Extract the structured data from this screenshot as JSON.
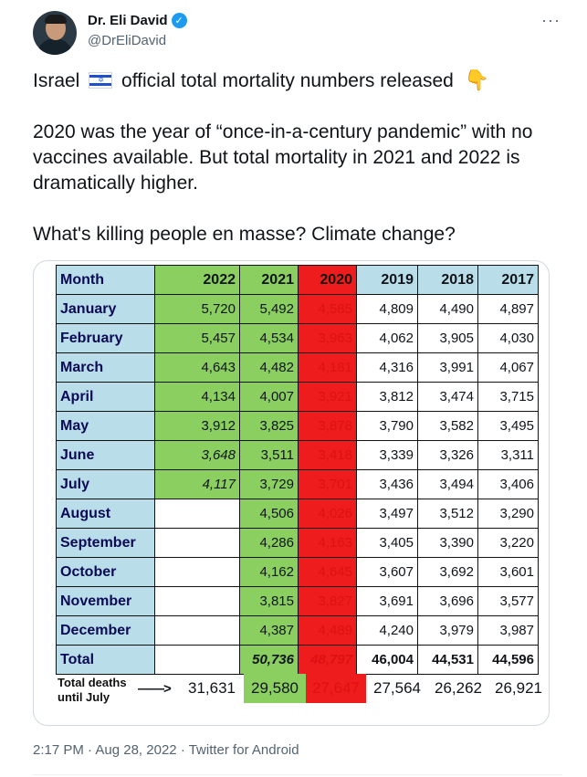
{
  "author": {
    "name": "Dr. Eli David",
    "handle": "@DrEliDavid",
    "verified_icon": "verified-badge-icon",
    "more_icon": "more-options-icon"
  },
  "tweet": {
    "line1_pre": "Israel",
    "line1_post": "official total mortality numbers released",
    "para2": "2020 was the year of “once-in-a-century pandemic” with no vaccines available. But total mortality in 2021 and 2022 is dramatically higher.",
    "para3": "What's killing people en masse? Climate change?"
  },
  "table": {
    "headers": [
      "Month",
      "2022",
      "2021",
      "2020",
      "2019",
      "2018",
      "2017"
    ],
    "rows": [
      [
        "January",
        "5,720",
        "5,492",
        "4,585",
        "4,809",
        "4,490",
        "4,897"
      ],
      [
        "February",
        "5,457",
        "4,534",
        "3,963",
        "4,062",
        "3,905",
        "4,030"
      ],
      [
        "March",
        "4,643",
        "4,482",
        "4,181",
        "4,316",
        "3,991",
        "4,067"
      ],
      [
        "April",
        "4,134",
        "4,007",
        "3,921",
        "3,812",
        "3,474",
        "3,715"
      ],
      [
        "May",
        "3,912",
        "3,825",
        "3,878",
        "3,790",
        "3,582",
        "3,495"
      ],
      [
        "June",
        "3,648",
        "3,511",
        "3,418",
        "3,339",
        "3,326",
        "3,311"
      ],
      [
        "July",
        "4,117",
        "3,729",
        "3,701",
        "3,436",
        "3,494",
        "3,406"
      ],
      [
        "August",
        "",
        "4,506",
        "4,026",
        "3,497",
        "3,512",
        "3,290"
      ],
      [
        "September",
        "",
        "4,286",
        "4,163",
        "3,405",
        "3,390",
        "3,220"
      ],
      [
        "October",
        "",
        "4,162",
        "4,645",
        "3,607",
        "3,692",
        "3,601"
      ],
      [
        "November",
        "",
        "3,815",
        "3,827",
        "3,691",
        "3,696",
        "3,577"
      ],
      [
        "December",
        "",
        "4,387",
        "4,489",
        "4,240",
        "3,979",
        "3,987"
      ]
    ],
    "total": [
      "Total",
      "",
      "50,736",
      "48,797",
      "46,004",
      "44,531",
      "44,596"
    ],
    "deaths_label_1": "Total deaths",
    "deaths_label_2": "until July",
    "deaths_arrow": "——>",
    "deaths_until_july": [
      "31,631",
      "29,580",
      "27,647",
      "27,564",
      "26,262",
      "26,921"
    ]
  },
  "footer": {
    "time": "2:17 PM",
    "date": "Aug 28, 2022",
    "source": "Twitter for Android",
    "separator": "·"
  },
  "colors": {
    "green": "#8ccf61",
    "red": "#ee1c1c",
    "light_blue": "#b9dde9",
    "twitter_blue": "#1d9bf0"
  }
}
